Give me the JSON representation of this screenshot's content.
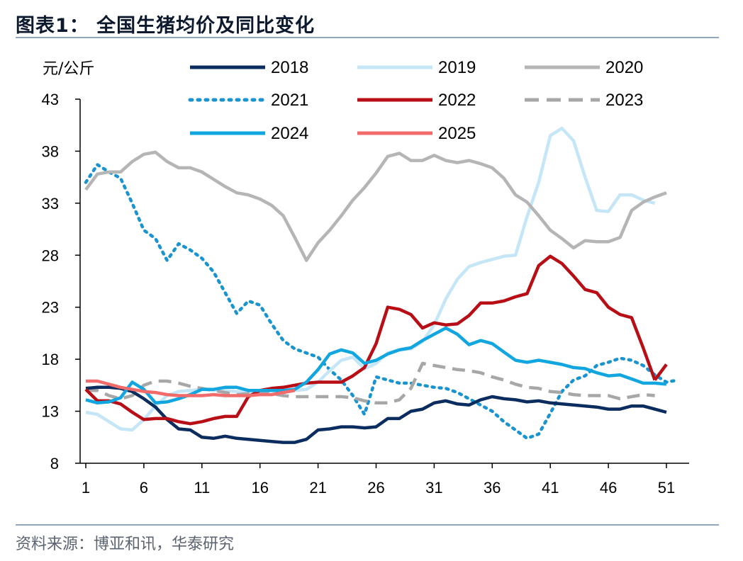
{
  "title": "图表1：  全国生猪均价及同比变化",
  "source": "资料来源：博亚和讯，华泰研究",
  "chart_data": {
    "type": "line",
    "ylabel": "元/公斤",
    "ylim": [
      8,
      43
    ],
    "yticks": [
      8,
      13,
      18,
      23,
      28,
      33,
      38,
      43
    ],
    "xlim": [
      1,
      52
    ],
    "xticks": [
      1,
      6,
      11,
      16,
      21,
      26,
      31,
      36,
      41,
      46,
      51
    ],
    "legend_position": "top",
    "series": [
      {
        "name": "2018",
        "color": "#0b2c5f",
        "dash": "solid",
        "width": 4.5,
        "x": [
          1,
          2,
          3,
          4,
          5,
          6,
          7,
          8,
          9,
          10,
          11,
          12,
          13,
          14,
          15,
          16,
          17,
          18,
          19,
          20,
          21,
          22,
          23,
          24,
          25,
          26,
          27,
          28,
          29,
          30,
          31,
          32,
          33,
          34,
          35,
          36,
          37,
          38,
          39,
          40,
          41,
          42,
          43,
          44,
          45,
          46,
          47,
          48,
          49,
          50,
          51
        ],
        "values": [
          15.2,
          15.3,
          15.3,
          15.2,
          14.9,
          14.2,
          13.4,
          12.2,
          11.3,
          11.2,
          10.5,
          10.4,
          10.6,
          10.4,
          10.3,
          10.2,
          10.1,
          10.0,
          10.0,
          10.3,
          11.2,
          11.3,
          11.5,
          11.5,
          11.4,
          11.5,
          12.3,
          12.3,
          13.0,
          13.2,
          13.8,
          14.0,
          13.7,
          13.6,
          14.1,
          14.4,
          14.2,
          14.1,
          13.9,
          14.0,
          13.8,
          13.7,
          13.6,
          13.5,
          13.4,
          13.2,
          13.2,
          13.5,
          13.5,
          13.2,
          12.9
        ]
      },
      {
        "name": "2019",
        "color": "#c4e6f7",
        "dash": "solid",
        "width": 4.5,
        "x": [
          1,
          2,
          3,
          4,
          5,
          6,
          7,
          8,
          9,
          10,
          11,
          12,
          13,
          14,
          15,
          16,
          17,
          18,
          19,
          20,
          21,
          22,
          23,
          24,
          25,
          26,
          27,
          28,
          29,
          30,
          31,
          32,
          33,
          34,
          35,
          36,
          37,
          38,
          39,
          40,
          41,
          42,
          43,
          44,
          45,
          46,
          47,
          48,
          49,
          50
        ],
        "values": [
          12.9,
          12.7,
          12.0,
          11.3,
          11.2,
          12.2,
          13.5,
          14.5,
          14.9,
          15.0,
          15.1,
          15.0,
          15.0,
          14.9,
          14.8,
          14.8,
          15.0,
          14.9,
          15.0,
          15.1,
          15.8,
          16.9,
          17.9,
          18.2,
          17.1,
          17.6,
          18.6,
          18.9,
          19.0,
          19.7,
          21.3,
          23.8,
          25.7,
          26.9,
          27.3,
          27.6,
          27.9,
          28.0,
          31.7,
          35.0,
          39.5,
          40.2,
          39.0,
          35.5,
          32.3,
          32.2,
          33.8,
          33.8,
          33.3,
          33.0
        ]
      },
      {
        "name": "2020",
        "color": "#b5b5b5",
        "dash": "solid",
        "width": 4.5,
        "x": [
          1,
          2,
          3,
          4,
          5,
          6,
          7,
          8,
          9,
          10,
          11,
          12,
          13,
          14,
          15,
          16,
          17,
          18,
          19,
          20,
          21,
          22,
          23,
          24,
          25,
          26,
          27,
          28,
          29,
          30,
          31,
          32,
          33,
          34,
          35,
          36,
          37,
          38,
          39,
          40,
          41,
          42,
          43,
          44,
          45,
          46,
          47,
          48,
          49,
          50,
          51
        ],
        "values": [
          34.3,
          35.8,
          36.0,
          36.0,
          37.0,
          37.7,
          37.9,
          37.0,
          36.4,
          36.4,
          36.0,
          35.3,
          34.6,
          34.0,
          33.8,
          33.4,
          32.8,
          31.8,
          29.7,
          27.5,
          29.2,
          30.4,
          31.8,
          33.3,
          34.5,
          35.9,
          37.5,
          37.8,
          37.1,
          37.1,
          37.6,
          37.1,
          36.9,
          37.1,
          36.8,
          36.4,
          35.4,
          33.8,
          33.1,
          31.8,
          30.4,
          29.6,
          28.7,
          29.4,
          29.3,
          29.3,
          29.7,
          32.3,
          33.1,
          33.6,
          34.0
        ]
      },
      {
        "name": "2021",
        "color": "#1a94cf",
        "dash": "dotted",
        "width": 4.5,
        "x": [
          1,
          2,
          3,
          4,
          5,
          6,
          7,
          8,
          9,
          10,
          11,
          12,
          13,
          14,
          15,
          16,
          17,
          18,
          19,
          20,
          21,
          22,
          23,
          24,
          25,
          26,
          27,
          28,
          29,
          30,
          31,
          32,
          33,
          34,
          35,
          36,
          37,
          38,
          39,
          40,
          41,
          42,
          43,
          44,
          45,
          46,
          47,
          48,
          49,
          50,
          51,
          52
        ],
        "values": [
          35.0,
          36.7,
          36.0,
          35.4,
          33.0,
          30.4,
          29.6,
          27.5,
          29.1,
          28.5,
          27.7,
          26.4,
          24.4,
          22.4,
          23.6,
          23.2,
          21.4,
          19.8,
          19.0,
          18.6,
          18.2,
          17.0,
          16.0,
          14.5,
          12.7,
          16.3,
          16.0,
          15.7,
          15.7,
          15.5,
          15.3,
          15.2,
          14.8,
          14.2,
          13.6,
          13.0,
          12.0,
          11.2,
          10.4,
          10.8,
          12.8,
          14.9,
          16.0,
          16.4,
          17.4,
          17.7,
          18.1,
          17.9,
          17.4,
          16.5,
          15.8,
          16.0
        ]
      },
      {
        "name": "2022",
        "color": "#b80f16",
        "dash": "solid",
        "width": 4.5,
        "x": [
          1,
          2,
          3,
          4,
          5,
          6,
          7,
          8,
          9,
          10,
          11,
          12,
          13,
          14,
          15,
          16,
          17,
          18,
          19,
          20,
          21,
          22,
          23,
          24,
          25,
          26,
          27,
          28,
          29,
          30,
          31,
          32,
          33,
          34,
          35,
          36,
          37,
          38,
          39,
          40,
          41,
          42,
          43,
          44,
          45,
          46,
          47,
          48,
          49,
          50
        ],
        "values": [
          15.1,
          14.0,
          14.0,
          13.7,
          12.9,
          12.2,
          12.3,
          12.3,
          12.0,
          11.8,
          12.0,
          12.3,
          12.5,
          12.5,
          14.4,
          15.0,
          15.2,
          15.3,
          15.5,
          15.7,
          15.8,
          15.8,
          15.8,
          16.4,
          17.2,
          19.5,
          23.0,
          22.8,
          22.3,
          21.0,
          21.5,
          21.3,
          21.4,
          22.2,
          23.4,
          23.4,
          23.6,
          24.0,
          24.3,
          27.0,
          27.9,
          27.2,
          26.0,
          24.7,
          24.4,
          23.0,
          22.3,
          22.0,
          19.1,
          16.0
        ]
      },
      {
        "name": "2023",
        "color": "#a7a7a7",
        "dash": "dashed",
        "width": 4.5,
        "x": [
          1,
          2,
          3,
          4,
          5,
          6,
          7,
          8,
          9,
          10,
          11,
          12,
          13,
          14,
          15,
          16,
          17,
          18,
          19,
          20,
          21,
          22,
          23,
          24,
          25,
          26,
          27,
          28,
          29,
          30,
          31,
          32,
          33,
          34,
          35,
          36,
          37,
          38,
          39,
          40,
          41,
          42,
          43,
          44,
          45,
          46,
          47,
          48,
          49,
          50
        ],
        "values": [
          15.0,
          15.0,
          14.5,
          14.2,
          14.5,
          15.5,
          15.9,
          15.9,
          15.7,
          15.4,
          15.2,
          15.0,
          14.8,
          14.6,
          14.7,
          14.8,
          14.7,
          14.5,
          14.4,
          14.4,
          14.4,
          14.4,
          14.4,
          14.3,
          14.0,
          13.8,
          13.8,
          14.1,
          15.2,
          17.6,
          17.4,
          17.2,
          17.0,
          16.9,
          16.7,
          16.3,
          16.0,
          15.6,
          15.3,
          15.2,
          14.9,
          14.8,
          14.6,
          14.5,
          14.5,
          14.5,
          14.2,
          14.4,
          14.6,
          14.5
        ]
      },
      {
        "name": "2024",
        "color": "#12a6e0",
        "dash": "solid",
        "width": 4.5,
        "x": [
          1,
          2,
          3,
          4,
          5,
          6,
          7,
          8,
          9,
          10,
          11,
          12,
          13,
          14,
          15,
          16,
          17,
          18,
          19,
          20,
          21,
          22,
          23,
          24,
          25,
          26,
          27,
          28,
          29,
          30,
          31,
          32,
          33,
          34,
          35,
          36,
          37,
          38,
          39,
          40,
          41,
          42,
          43,
          44,
          45,
          46,
          47,
          48,
          49,
          50,
          51
        ],
        "values": [
          14.1,
          13.8,
          13.9,
          14.3,
          15.8,
          15.1,
          13.8,
          13.9,
          14.2,
          14.6,
          15.1,
          15.1,
          15.3,
          15.3,
          15.0,
          15.0,
          15.0,
          15.0,
          15.1,
          15.8,
          17.0,
          18.5,
          18.9,
          18.6,
          17.6,
          17.9,
          18.5,
          18.9,
          19.1,
          19.8,
          20.4,
          21.0,
          20.4,
          19.4,
          19.8,
          19.5,
          18.7,
          17.9,
          17.7,
          17.9,
          17.7,
          17.5,
          17.2,
          17.1,
          16.7,
          16.4,
          16.5,
          16.1,
          15.7,
          15.7,
          15.6
        ]
      },
      {
        "name": "2025",
        "color": "#f26b6b",
        "dash": "solid",
        "width": 4.5,
        "x": [
          1,
          2,
          3,
          4,
          5,
          6,
          7,
          8,
          9,
          10,
          11,
          12,
          13,
          14,
          15,
          16,
          17,
          18,
          19
        ],
        "values": [
          15.9,
          15.9,
          15.6,
          15.3,
          15.1,
          14.9,
          14.8,
          14.6,
          14.5,
          14.5,
          14.5,
          14.6,
          14.5,
          14.5,
          14.5,
          14.6,
          14.6,
          14.8,
          15.0
        ]
      },
      {
        "name": "2022-tail",
        "legend": false,
        "color": "#b80f16",
        "dash": "solid",
        "width": 4.5,
        "x": [
          50,
          51
        ],
        "values": [
          16.0,
          17.5
        ]
      }
    ]
  }
}
